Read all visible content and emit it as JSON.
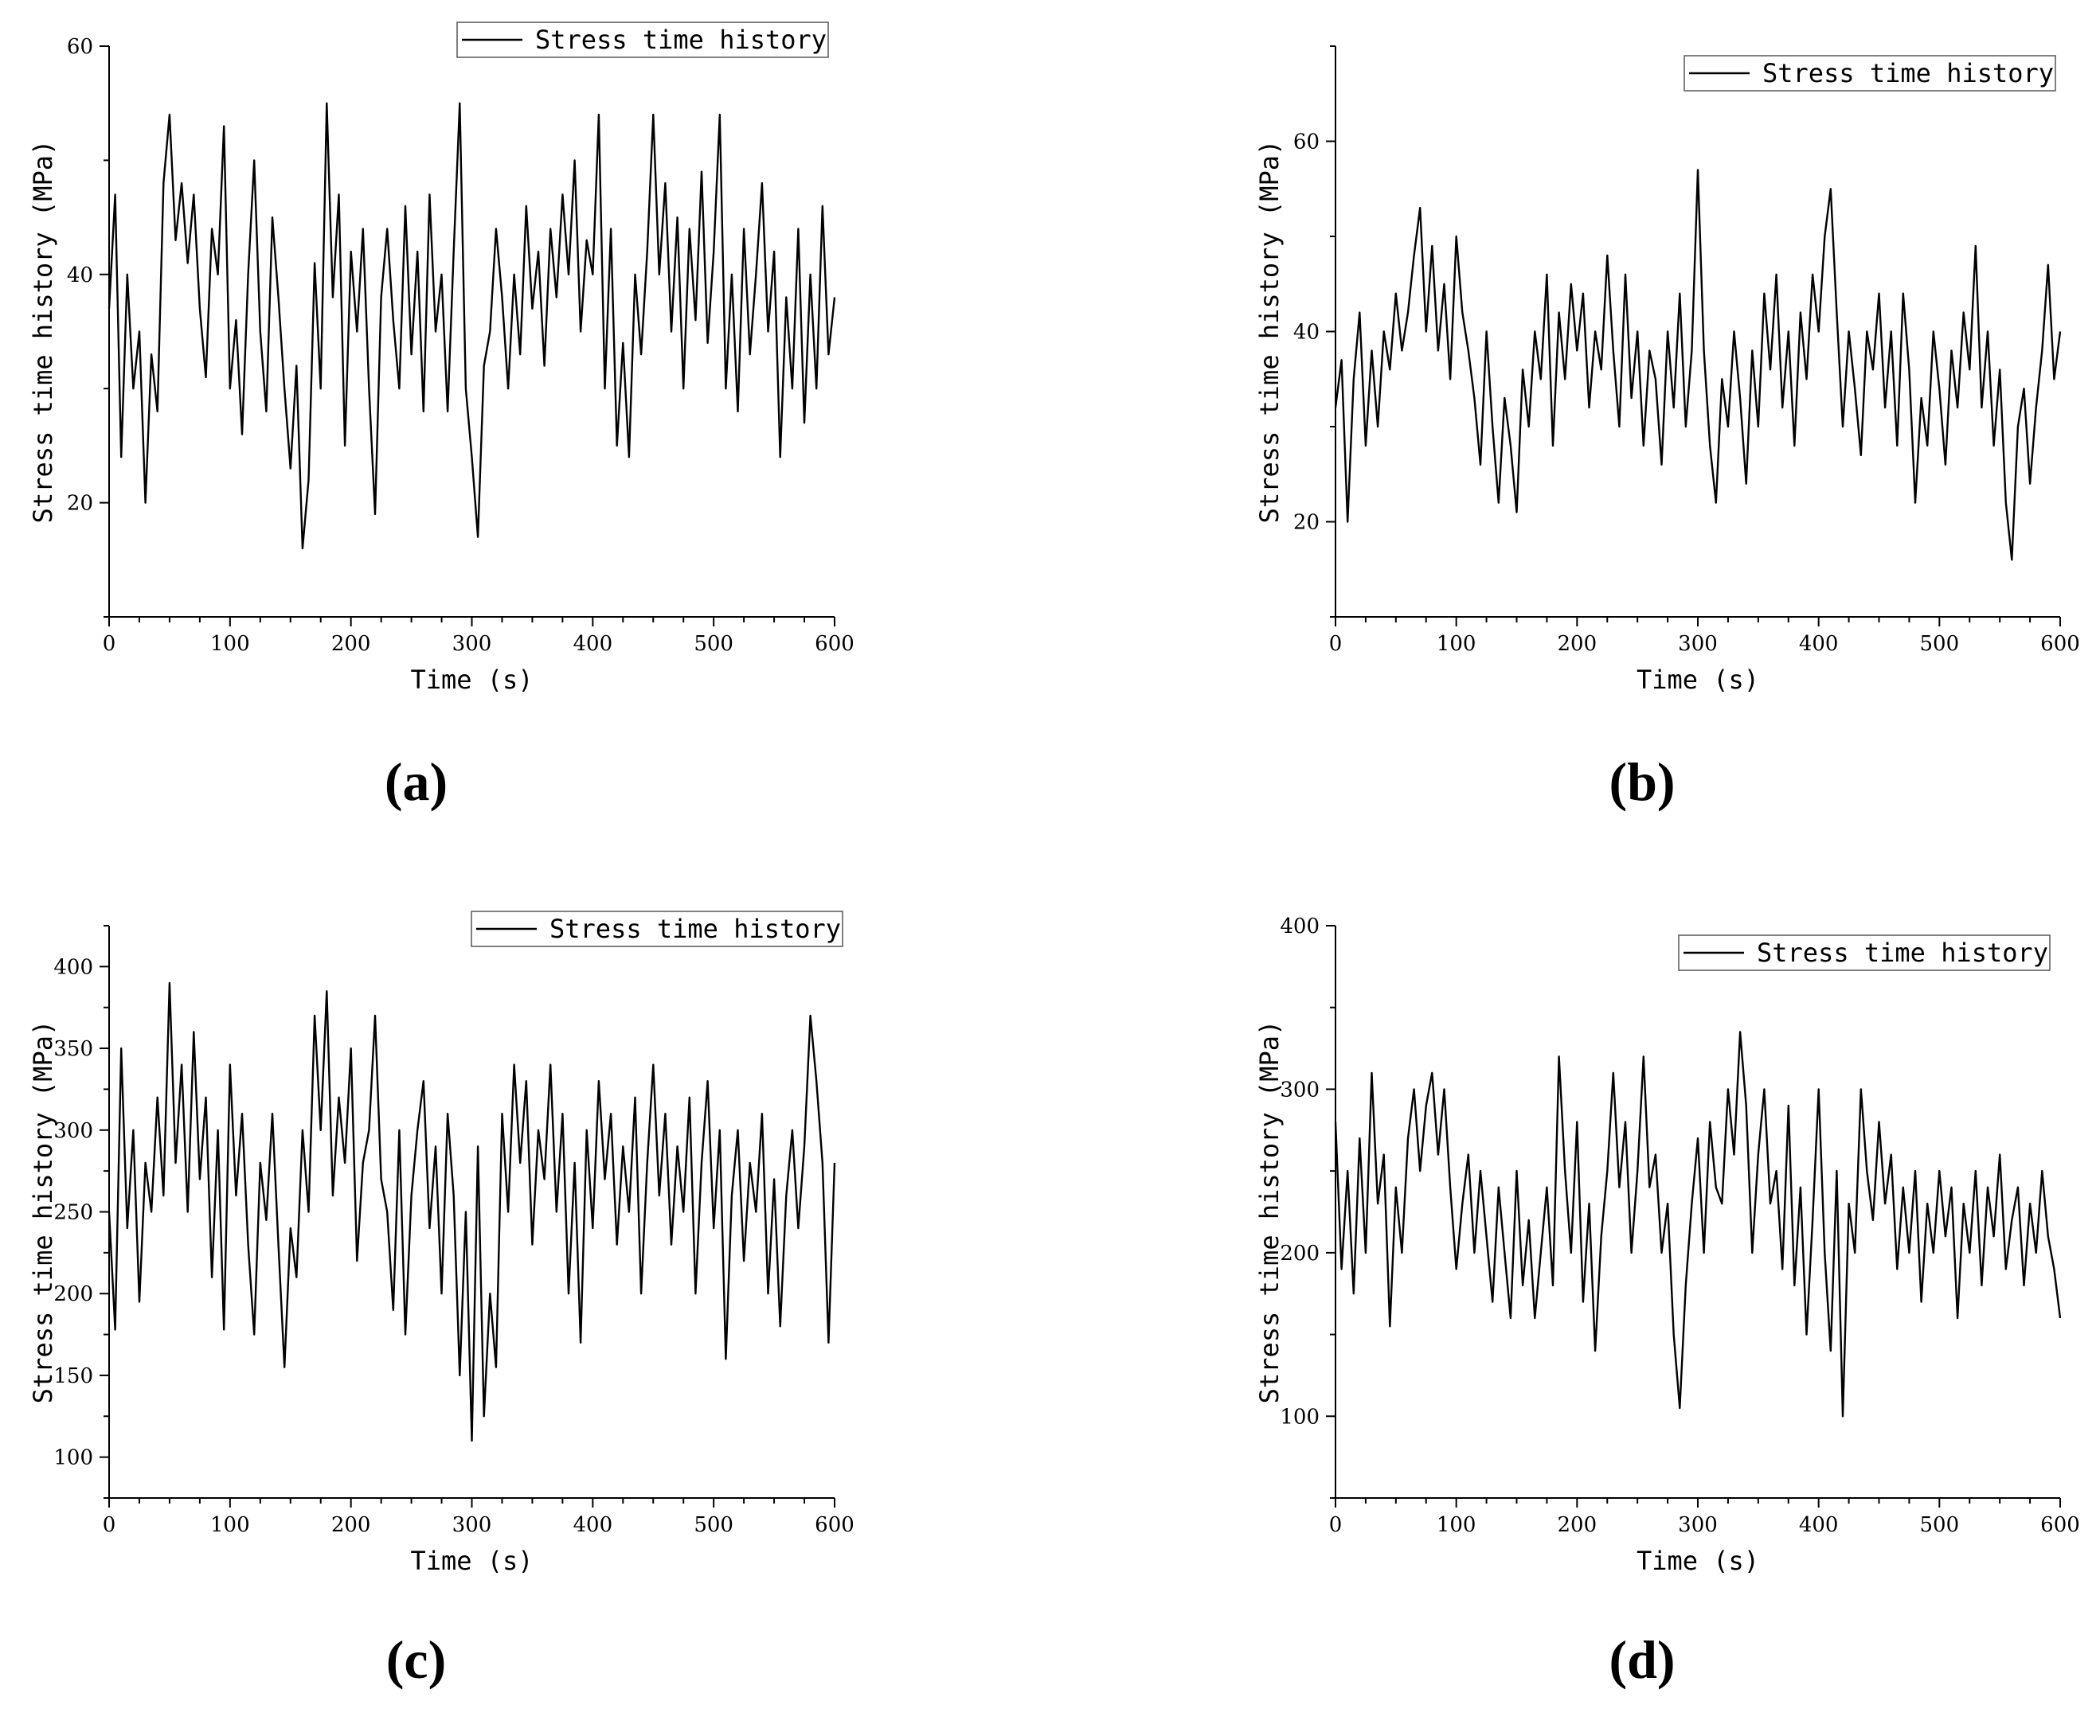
{
  "figure": {
    "panels": [
      {
        "id": "a",
        "label": "(a)"
      },
      {
        "id": "b",
        "label": "(b)"
      },
      {
        "id": "c",
        "label": "(c)"
      },
      {
        "id": "d",
        "label": "(d)"
      }
    ]
  },
  "chart_data": [
    {
      "type": "line",
      "panel_label": "(a)",
      "xlabel": "Time (s)",
      "ylabel": "Stress time history (MPa)",
      "xlim": [
        0,
        600
      ],
      "ylim": [
        10,
        60
      ],
      "xticks": [
        0,
        100,
        200,
        300,
        400,
        500,
        600
      ],
      "yticks": [
        20,
        40,
        60
      ],
      "legend": {
        "position": "top-right",
        "entries": [
          "Stress time history"
        ]
      },
      "grid": false,
      "series": [
        {
          "name": "Stress time history",
          "color": "#000000",
          "x": [
            0,
            5,
            10,
            15,
            20,
            25,
            30,
            35,
            40,
            45,
            50,
            55,
            60,
            65,
            70,
            75,
            80,
            85,
            90,
            95,
            100,
            105,
            110,
            115,
            120,
            125,
            130,
            135,
            140,
            145,
            150,
            155,
            160,
            165,
            170,
            175,
            180,
            185,
            190,
            195,
            200,
            205,
            210,
            215,
            220,
            225,
            230,
            235,
            240,
            245,
            250,
            255,
            260,
            265,
            270,
            275,
            280,
            285,
            290,
            295,
            300,
            305,
            310,
            315,
            320,
            325,
            330,
            335,
            340,
            345,
            350,
            355,
            360,
            365,
            370,
            375,
            380,
            385,
            390,
            395,
            400,
            405,
            410,
            415,
            420,
            425,
            430,
            435,
            440,
            445,
            450,
            455,
            460,
            465,
            470,
            475,
            480,
            485,
            490,
            495,
            500,
            505,
            510,
            515,
            520,
            525,
            530,
            535,
            540,
            545,
            550,
            555,
            560,
            565,
            570,
            575,
            580,
            585,
            590,
            595,
            600
          ],
          "values": [
            37,
            47,
            24,
            40,
            30,
            35,
            20,
            33,
            28,
            48,
            54,
            43,
            48,
            41,
            47,
            37,
            31,
            44,
            40,
            53,
            30,
            36,
            26,
            40,
            50,
            35,
            28,
            45,
            38,
            30,
            23,
            32,
            16,
            22,
            41,
            30,
            55,
            38,
            47,
            25,
            42,
            35,
            44,
            30,
            19,
            38,
            44,
            36,
            30,
            46,
            33,
            42,
            28,
            47,
            35,
            40,
            28,
            42,
            55,
            30,
            24,
            17,
            32,
            35,
            44,
            38,
            30,
            40,
            33,
            46,
            37,
            42,
            32,
            44,
            38,
            47,
            40,
            50,
            35,
            43,
            40,
            54,
            30,
            44,
            25,
            34,
            24,
            40,
            33,
            42,
            54,
            40,
            48,
            35,
            45,
            30,
            44,
            36,
            49,
            34,
            42,
            54,
            30,
            40,
            28,
            44,
            33,
            40,
            48,
            35,
            42,
            24,
            38,
            30,
            44,
            27,
            40,
            30,
            46,
            33,
            38
          ]
        }
      ]
    },
    {
      "type": "line",
      "panel_label": "(b)",
      "xlabel": "Time (s)",
      "ylabel": "Stress time history (MPa)",
      "xlim": [
        0,
        600
      ],
      "ylim": [
        10,
        70
      ],
      "xticks": [
        0,
        100,
        200,
        300,
        400,
        500,
        600
      ],
      "yticks": [
        20,
        40,
        60
      ],
      "legend": {
        "position": "top-right",
        "entries": [
          "Stress time history"
        ]
      },
      "grid": false,
      "series": [
        {
          "name": "Stress time history",
          "color": "#000000",
          "x": [
            0,
            5,
            10,
            15,
            20,
            25,
            30,
            35,
            40,
            45,
            50,
            55,
            60,
            65,
            70,
            75,
            80,
            85,
            90,
            95,
            100,
            105,
            110,
            115,
            120,
            125,
            130,
            135,
            140,
            145,
            150,
            155,
            160,
            165,
            170,
            175,
            180,
            185,
            190,
            195,
            200,
            205,
            210,
            215,
            220,
            225,
            230,
            235,
            240,
            245,
            250,
            255,
            260,
            265,
            270,
            275,
            280,
            285,
            290,
            295,
            300,
            305,
            310,
            315,
            320,
            325,
            330,
            335,
            340,
            345,
            350,
            355,
            360,
            365,
            370,
            375,
            380,
            385,
            390,
            395,
            400,
            405,
            410,
            415,
            420,
            425,
            430,
            435,
            440,
            445,
            450,
            455,
            460,
            465,
            470,
            475,
            480,
            485,
            490,
            495,
            500,
            505,
            510,
            515,
            520,
            525,
            530,
            535,
            540,
            545,
            550,
            555,
            560,
            565,
            570,
            575,
            580,
            585,
            590,
            595,
            600
          ],
          "values": [
            32,
            37,
            20,
            35,
            42,
            28,
            38,
            30,
            40,
            36,
            44,
            38,
            42,
            48,
            53,
            40,
            49,
            38,
            45,
            35,
            50,
            42,
            38,
            33,
            26,
            40,
            30,
            22,
            33,
            28,
            21,
            36,
            30,
            40,
            35,
            46,
            28,
            42,
            35,
            45,
            38,
            44,
            32,
            40,
            36,
            48,
            38,
            30,
            46,
            33,
            40,
            28,
            38,
            35,
            26,
            40,
            32,
            44,
            30,
            38,
            57,
            38,
            28,
            22,
            35,
            30,
            40,
            33,
            24,
            38,
            30,
            44,
            36,
            46,
            32,
            40,
            28,
            42,
            35,
            46,
            40,
            50,
            55,
            42,
            30,
            40,
            34,
            27,
            40,
            36,
            44,
            32,
            40,
            28,
            44,
            36,
            22,
            33,
            28,
            40,
            34,
            26,
            38,
            32,
            42,
            36,
            49,
            32,
            40,
            28,
            36,
            22,
            16,
            30,
            34,
            24,
            32,
            38,
            47,
            35,
            40
          ]
        }
      ]
    },
    {
      "type": "line",
      "panel_label": "(c)",
      "xlabel": "Time (s)",
      "ylabel": "Stress time history (MPa)",
      "xlim": [
        0,
        600
      ],
      "ylim": [
        75,
        425
      ],
      "xticks": [
        0,
        100,
        200,
        300,
        400,
        500,
        600
      ],
      "yticks": [
        100,
        150,
        200,
        250,
        300,
        350,
        400
      ],
      "legend": {
        "position": "top-right",
        "entries": [
          "Stress time history"
        ]
      },
      "grid": false,
      "series": [
        {
          "name": "Stress time history",
          "color": "#000000",
          "x": [
            0,
            5,
            10,
            15,
            20,
            25,
            30,
            35,
            40,
            45,
            50,
            55,
            60,
            65,
            70,
            75,
            80,
            85,
            90,
            95,
            100,
            105,
            110,
            115,
            120,
            125,
            130,
            135,
            140,
            145,
            150,
            155,
            160,
            165,
            170,
            175,
            180,
            185,
            190,
            195,
            200,
            205,
            210,
            215,
            220,
            225,
            230,
            235,
            240,
            245,
            250,
            255,
            260,
            265,
            270,
            275,
            280,
            285,
            290,
            295,
            300,
            305,
            310,
            315,
            320,
            325,
            330,
            335,
            340,
            345,
            350,
            355,
            360,
            365,
            370,
            375,
            380,
            385,
            390,
            395,
            400,
            405,
            410,
            415,
            420,
            425,
            430,
            435,
            440,
            445,
            450,
            455,
            460,
            465,
            470,
            475,
            480,
            485,
            490,
            495,
            500,
            505,
            510,
            515,
            520,
            525,
            530,
            535,
            540,
            545,
            550,
            555,
            560,
            565,
            570,
            575,
            580,
            585,
            590,
            595,
            600
          ],
          "values": [
            250,
            178,
            350,
            240,
            300,
            195,
            280,
            250,
            320,
            260,
            390,
            280,
            340,
            250,
            360,
            270,
            320,
            210,
            300,
            178,
            340,
            260,
            310,
            230,
            175,
            280,
            245,
            310,
            230,
            155,
            240,
            210,
            300,
            250,
            370,
            300,
            385,
            260,
            320,
            280,
            350,
            220,
            280,
            300,
            370,
            270,
            250,
            190,
            300,
            175,
            260,
            300,
            330,
            240,
            290,
            200,
            310,
            260,
            150,
            250,
            110,
            290,
            125,
            200,
            155,
            310,
            250,
            340,
            280,
            330,
            230,
            300,
            270,
            340,
            250,
            310,
            200,
            280,
            170,
            300,
            240,
            330,
            270,
            310,
            230,
            290,
            250,
            320,
            200,
            280,
            340,
            260,
            310,
            230,
            290,
            250,
            320,
            200,
            280,
            330,
            240,
            300,
            160,
            260,
            300,
            220,
            280,
            250,
            310,
            200,
            270,
            180,
            260,
            300,
            240,
            290,
            370,
            330,
            280,
            170,
            280
          ]
        }
      ]
    },
    {
      "type": "line",
      "panel_label": "(d)",
      "xlabel": "Time (s)",
      "ylabel": "Stress time history (MPa)",
      "xlim": [
        0,
        600
      ],
      "ylim": [
        50,
        400
      ],
      "xticks": [
        0,
        100,
        200,
        300,
        400,
        500,
        600
      ],
      "yticks": [
        100,
        200,
        300,
        400
      ],
      "legend": {
        "position": "top-right",
        "entries": [
          "Stress time history"
        ]
      },
      "grid": false,
      "series": [
        {
          "name": "Stress time history",
          "color": "#000000",
          "x": [
            0,
            5,
            10,
            15,
            20,
            25,
            30,
            35,
            40,
            45,
            50,
            55,
            60,
            65,
            70,
            75,
            80,
            85,
            90,
            95,
            100,
            105,
            110,
            115,
            120,
            125,
            130,
            135,
            140,
            145,
            150,
            155,
            160,
            165,
            170,
            175,
            180,
            185,
            190,
            195,
            200,
            205,
            210,
            215,
            220,
            225,
            230,
            235,
            240,
            245,
            250,
            255,
            260,
            265,
            270,
            275,
            280,
            285,
            290,
            295,
            300,
            305,
            310,
            315,
            320,
            325,
            330,
            335,
            340,
            345,
            350,
            355,
            360,
            365,
            370,
            375,
            380,
            385,
            390,
            395,
            400,
            405,
            410,
            415,
            420,
            425,
            430,
            435,
            440,
            445,
            450,
            455,
            460,
            465,
            470,
            475,
            480,
            485,
            490,
            495,
            500,
            505,
            510,
            515,
            520,
            525,
            530,
            535,
            540,
            545,
            550,
            555,
            560,
            565,
            570,
            575,
            580,
            585,
            590,
            595,
            600
          ],
          "values": [
            280,
            190,
            250,
            175,
            270,
            200,
            310,
            230,
            260,
            155,
            240,
            200,
            270,
            300,
            250,
            290,
            310,
            260,
            300,
            240,
            190,
            230,
            260,
            200,
            250,
            210,
            170,
            240,
            200,
            160,
            250,
            180,
            220,
            160,
            200,
            240,
            180,
            320,
            250,
            200,
            280,
            170,
            230,
            140,
            210,
            250,
            310,
            240,
            280,
            200,
            250,
            320,
            240,
            260,
            200,
            230,
            150,
            105,
            180,
            230,
            270,
            200,
            280,
            240,
            230,
            300,
            260,
            335,
            290,
            200,
            260,
            300,
            230,
            250,
            190,
            290,
            180,
            240,
            150,
            220,
            300,
            200,
            140,
            250,
            100,
            230,
            200,
            300,
            250,
            220,
            280,
            230,
            260,
            190,
            240,
            200,
            250,
            170,
            230,
            200,
            250,
            210,
            240,
            160,
            230,
            200,
            250,
            180,
            240,
            210,
            260,
            190,
            220,
            240,
            180,
            230,
            200,
            250,
            210,
            190,
            160
          ]
        }
      ]
    }
  ]
}
